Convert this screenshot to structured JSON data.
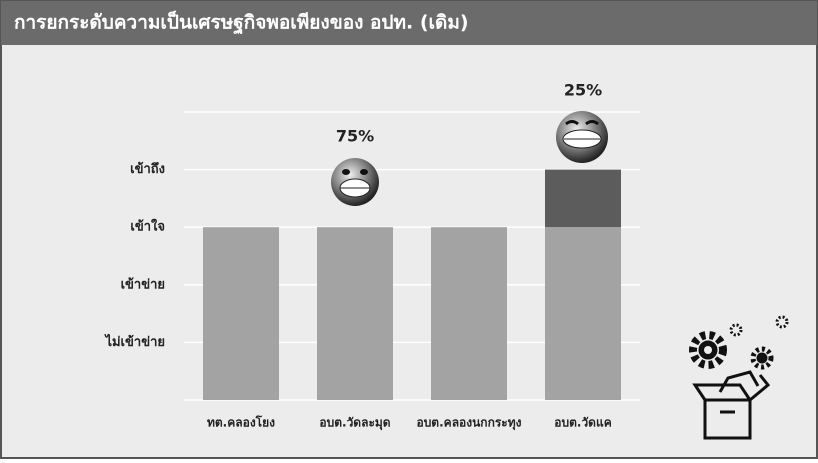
{
  "chart_data": {
    "type": "stacked-bar",
    "title": "การยกระดับความเป็นเศรษฐกิจพอเพียงของ อปท. (เดิม)",
    "categories": [
      "ทต.คลองโยง",
      "อบต.วัดละมุด",
      "อบต.คลองนกกระทุง",
      "อบต.วัดแค"
    ],
    "series": [
      {
        "color": "#a3a3a3",
        "values": [
          3,
          3,
          3,
          3
        ]
      },
      {
        "color": "#5c5c5c",
        "values": [
          0,
          0,
          0,
          1
        ]
      }
    ],
    "annotations": [
      "75%",
      "25%"
    ],
    "ylim": [
      0,
      5
    ],
    "yticks": [
      {
        "value": 1,
        "label": "ไม่เข้าข่าย"
      },
      {
        "value": 2,
        "label": "เข้าข่าย"
      },
      {
        "value": 3,
        "label": "เข้าใจ"
      },
      {
        "value": 4,
        "label": "เข้าถึง"
      }
    ],
    "grid": true
  }
}
